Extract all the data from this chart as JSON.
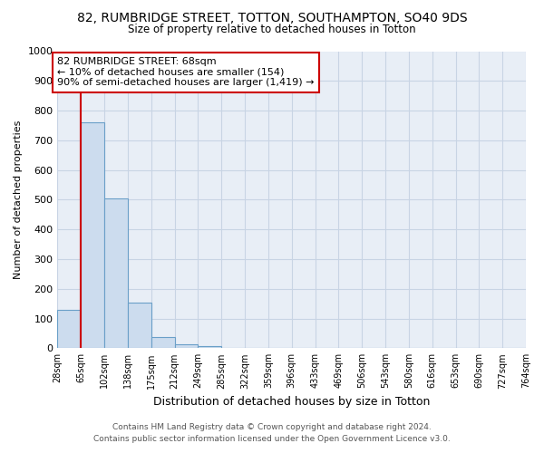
{
  "title1": "82, RUMBRIDGE STREET, TOTTON, SOUTHAMPTON, SO40 9DS",
  "title2": "Size of property relative to detached houses in Totton",
  "xlabel": "Distribution of detached houses by size in Totton",
  "ylabel": "Number of detached properties",
  "footnote1": "Contains HM Land Registry data © Crown copyright and database right 2024.",
  "footnote2": "Contains public sector information licensed under the Open Government Licence v3.0.",
  "bin_labels": [
    "28sqm",
    "65sqm",
    "102sqm",
    "138sqm",
    "175sqm",
    "212sqm",
    "249sqm",
    "285sqm",
    "322sqm",
    "359sqm",
    "396sqm",
    "433sqm",
    "469sqm",
    "506sqm",
    "543sqm",
    "580sqm",
    "616sqm",
    "653sqm",
    "690sqm",
    "727sqm",
    "764sqm"
  ],
  "bar_values": [
    128,
    762,
    505,
    152,
    37,
    13,
    8,
    0,
    0,
    0,
    0,
    0,
    0,
    0,
    0,
    0,
    0,
    0,
    0,
    0
  ],
  "bar_color": "#ccdcee",
  "bar_edge_color": "#6a9fc8",
  "property_line_x": 1.0,
  "property_line_color": "#cc0000",
  "annotation_line1": "82 RUMBRIDGE STREET: 68sqm",
  "annotation_line2": "← 10% of detached houses are smaller (154)",
  "annotation_line3": "90% of semi-detached houses are larger (1,419) →",
  "annotation_box_color": "#cc0000",
  "ylim": [
    0,
    1000
  ],
  "yticks": [
    0,
    100,
    200,
    300,
    400,
    500,
    600,
    700,
    800,
    900,
    1000
  ],
  "grid_color": "#c8d4e4",
  "background_color": "#e8eef6"
}
